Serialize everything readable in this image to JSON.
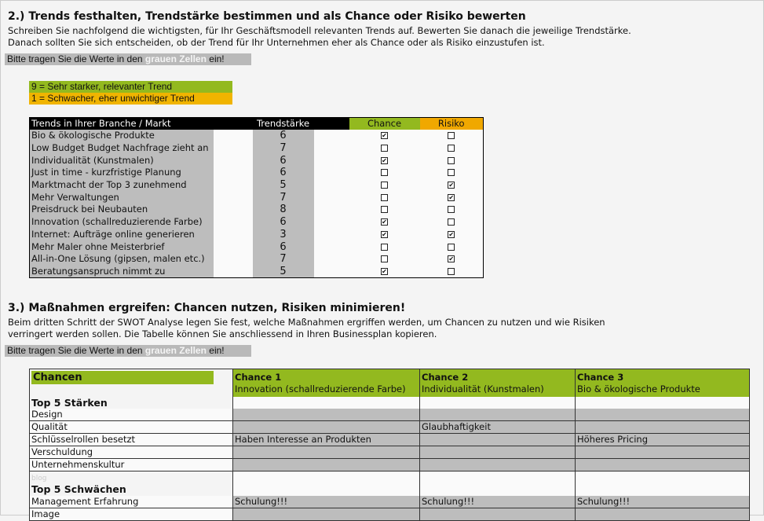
{
  "s2": {
    "title": "2.) Trends festhalten, Trendstärke bestimmen und als Chance oder Risiko bewerten",
    "desc1": "Schreiben Sie nachfolgend die wichtigsten, für Ihr Geschäftsmodell relevanten Trends auf. Bewerten Sie danach die jeweilige Trendstärke.",
    "desc2": "Danach sollten Sie sich entscheiden, ob der Trend für Ihr Unternehmen eher als Chance oder als Risiko einzustufen ist.",
    "note_a": "Bitte tragen Sie die Werte in den",
    "note_b": "grauen Zellen",
    "note_c": "ein!",
    "legend_high": "9 = Sehr starker, relevanter Trend",
    "legend_low": "1 = Schwacher, eher unwichtiger Trend",
    "headers": {
      "trend": "Trends in Ihrer Branche / Markt",
      "strength": "Trendstärke",
      "chance": "Chance",
      "risk": "Risiko"
    },
    "rows": [
      {
        "trend": "Bio & ökologische Produkte",
        "strength": "6",
        "chance": true,
        "risk": false
      },
      {
        "trend": "Low Budget Budget Nachfrage zieht an",
        "strength": "7",
        "chance": false,
        "risk": false
      },
      {
        "trend": "Individualität (Kunstmalen)",
        "strength": "6",
        "chance": true,
        "risk": false
      },
      {
        "trend": "Just in time - kurzfristige Planung",
        "strength": "6",
        "chance": false,
        "risk": false
      },
      {
        "trend": "Marktmacht der Top 3  zunehmend",
        "strength": "5",
        "chance": false,
        "risk": true
      },
      {
        "trend": "Mehr Verwaltungen",
        "strength": "7",
        "chance": false,
        "risk": true
      },
      {
        "trend": "Preisdruck bei Neubauten",
        "strength": "8",
        "chance": false,
        "risk": false
      },
      {
        "trend": "Innovation (schallreduzierende Farbe)",
        "strength": "6",
        "chance": true,
        "risk": false
      },
      {
        "trend": "Internet: Aufträge online generieren",
        "strength": "3",
        "chance": true,
        "risk": true
      },
      {
        "trend": "Mehr Maler ohne Meisterbrief",
        "strength": "6",
        "chance": false,
        "risk": false
      },
      {
        "trend": "All-in-One Lösung (gipsen, malen etc.)",
        "strength": "7",
        "chance": false,
        "risk": true
      },
      {
        "trend": "Beratungsanspruch nimmt zu",
        "strength": "5",
        "chance": true,
        "risk": false
      }
    ]
  },
  "s3": {
    "title": "3.) Maßnahmen ergreifen: Chancen nutzen, Risiken minimieren!",
    "desc1": "Beim dritten Schritt der SWOT Analyse legen Sie fest, welche Maßnahmen ergriffen werden, um Chancen zu nutzen und wie Risiken",
    "desc2": "verringert werden sollen. Die Tabelle können Sie anschliessend in Ihren Businessplan kopieren.",
    "note_a": "Bitte tragen Sie die Werte in den",
    "note_b": "grauen Zellen",
    "note_c": "ein!",
    "corner": "Chancen",
    "chances": [
      {
        "label": "Chance 1",
        "name": "Innovation (schallreduzierende Farbe)"
      },
      {
        "label": "Chance 2",
        "name": "Individualität (Kunstmalen)"
      },
      {
        "label": "Chance 3",
        "name": "Bio & ökologische Produkte"
      }
    ],
    "strengths_title": "Top 5 Stärken",
    "strengths": [
      {
        "label": "Design",
        "cells": [
          "",
          "",
          ""
        ]
      },
      {
        "label": "Qualität",
        "cells": [
          "",
          "Glaubhaftigkeit",
          ""
        ]
      },
      {
        "label": "Schlüsselrollen besetzt",
        "cells": [
          "Haben Interesse an Produkten",
          "",
          "Höheres Pricing"
        ]
      },
      {
        "label": "Verschuldung",
        "cells": [
          "",
          "",
          ""
        ]
      },
      {
        "label": "Unternehmenskultur",
        "cells": [
          "",
          "",
          ""
        ]
      }
    ],
    "watermark": "blog",
    "weaknesses_title": "Top 5 Schwächen",
    "weaknesses": [
      {
        "label": "Management Erfahrung",
        "cells": [
          "Schulung!!!",
          "Schulung!!!",
          "Schulung!!!"
        ]
      },
      {
        "label": "Image",
        "cells": [
          "",
          "",
          ""
        ]
      }
    ]
  },
  "colors": {
    "green": "#93b91f",
    "orange": "#f0a800",
    "gray": "#bdbdbd"
  }
}
